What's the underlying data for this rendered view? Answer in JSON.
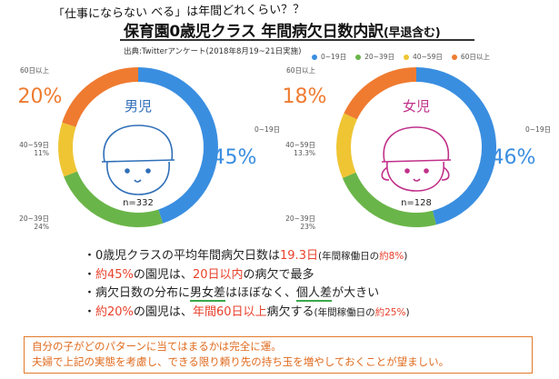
{
  "handwritten_title": "「仕事にならない べる」は年間どれくらい？？",
  "title": "保育園0歳児クラス 年間病欠日数内訳",
  "title_suffix": "(早退含む)",
  "source": "出典:Twitterアンケート(2018年8月19~21日実施)",
  "legend": [
    {
      "label": "0~19日",
      "color": "#3a8ee0"
    },
    {
      "label": "20~39日",
      "color": "#6ab549"
    },
    {
      "label": "40~59日",
      "color": "#efc534"
    },
    {
      "label": "60日以上",
      "color": "#ef7b30"
    }
  ],
  "chart_data": [
    {
      "type": "pie",
      "title": "男児",
      "n_label": "n=332",
      "categories": [
        "0~19日",
        "20~39日",
        "40~59日",
        "60日以上"
      ],
      "values": [
        45,
        24,
        11,
        20
      ],
      "value_labels": [
        "0~19日",
        "20~39日\n24%",
        "40~59日\n11%",
        "60日以上"
      ],
      "big_labels": {
        "0~19日": "45%",
        "60日以上": "20%"
      },
      "colors": [
        "#3a8ee0",
        "#6ab549",
        "#efc534",
        "#ef7b30"
      ]
    },
    {
      "type": "pie",
      "title": "女児",
      "n_label": "n=128",
      "categories": [
        "0~19日",
        "20~39日",
        "40~59日",
        "60日以上"
      ],
      "values": [
        46,
        22.7,
        13.3,
        18
      ],
      "value_labels": [
        "0~19日",
        "20~39日\n23%",
        "40~59日\n13.3%",
        "60日以上"
      ],
      "big_labels": {
        "0~19日": "46%",
        "60日以上": "18%"
      },
      "colors": [
        "#3a8ee0",
        "#6ab549",
        "#efc534",
        "#ef7b30"
      ]
    }
  ],
  "stats": {
    "r1a": "・0歳児クラスの平均年間病欠日数は",
    "r1b": "19.3日",
    "r1c": "(年間稼働日の",
    "r1d": "約8%",
    "r1e": ")",
    "r2a": "・",
    "r2b": "約45%",
    "r2c": "の園児は、",
    "r2d": "20日以内",
    "r2e": "の病欠で最多",
    "r3a": "・病欠日数の分布に",
    "r3b": "男女差",
    "r3c": "はほぼなく、",
    "r3d": "個人差",
    "r3e": "が大きい",
    "r4a": "・",
    "r4b": "約20%",
    "r4c": "の園児は、",
    "r4d": "年間60日以上",
    "r4e": "病欠する",
    "r4f": "(年間稼働日の",
    "r4g": "約25%",
    "r4h": ")"
  },
  "note": {
    "line1": "自分の子がどのパターンに当てはまるかは完全に運。",
    "line2": "夫婦で上記の実態を考慮し、できる限り頼り先の持ち玉を増やしておくことが望ましい。"
  }
}
